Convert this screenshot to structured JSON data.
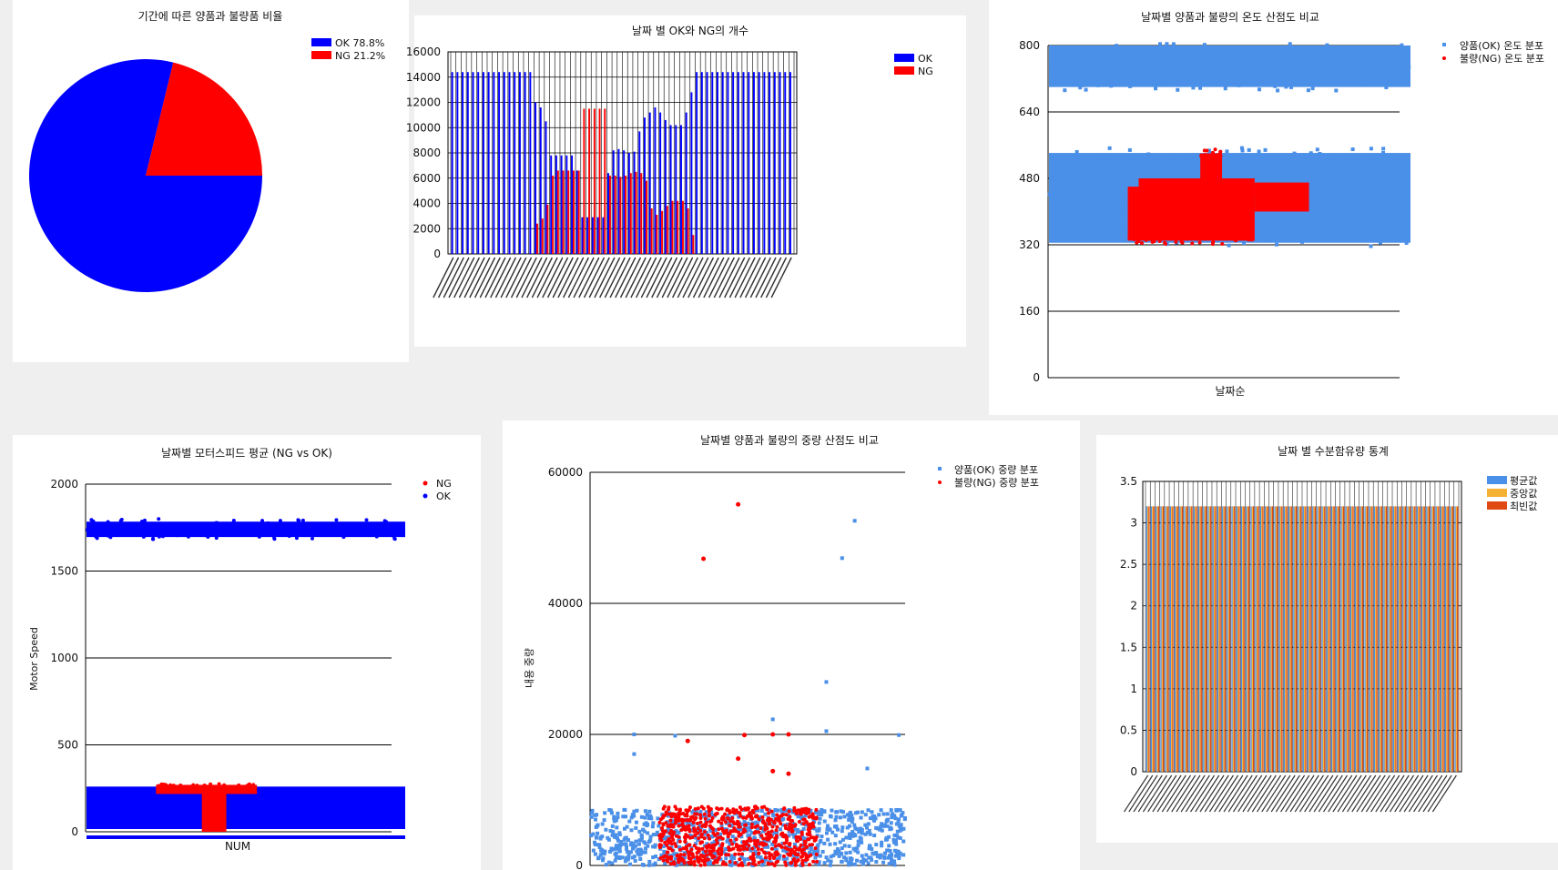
{
  "pie_chart": {
    "title": "기간에 따른 양품과 불량품 비율",
    "legend": [
      {
        "label": "OK 78.8%",
        "color": "#0000ff"
      },
      {
        "label": "NG 21.2%",
        "color": "#ff0000"
      }
    ]
  },
  "count_chart": {
    "title": "날짜 별 OK와 NG의 개수",
    "legend": [
      {
        "label": "OK",
        "color": "#0000ff"
      },
      {
        "label": "NG",
        "color": "#ff0000"
      }
    ]
  },
  "temp_chart": {
    "title": "날짜별 양품과 불량의 온도 산점도 비교",
    "xlabel": "날짜순",
    "legend": [
      {
        "label": "양품(OK) 온도 분포",
        "color": "#4a8fe8"
      },
      {
        "label": "불량(NG) 온도 분포",
        "color": "#ff0000"
      }
    ]
  },
  "motor_chart": {
    "title": "날짜별 모터스피드 평균 (NG vs OK)",
    "xlabel": "NUM",
    "ylabel": "Motor Speed",
    "legend": [
      {
        "label": "NG",
        "color": "#ff0000"
      },
      {
        "label": "OK",
        "color": "#0000ff"
      }
    ]
  },
  "weight_chart": {
    "title": "날짜별 양품과 불량의 중량 산점도 비교",
    "ylabel": "내용 중량",
    "legend": [
      {
        "label": "양품(OK) 중량 분포",
        "color": "#4a8fe8"
      },
      {
        "label": "불량(NG) 중량 분포",
        "color": "#ff0000"
      }
    ]
  },
  "moisture_chart": {
    "title": "날짜 별 수분함유량 통계",
    "legend": [
      {
        "label": "평균값",
        "color": "#4a8fe8"
      },
      {
        "label": "중앙값",
        "color": "#f5b133"
      },
      {
        "label": "최빈값",
        "color": "#e04a12"
      }
    ]
  },
  "chart_data": [
    {
      "type": "pie",
      "title": "기간에 따른 양품과 불량품 비율",
      "slices": [
        {
          "label": "OK",
          "value": 78.8,
          "color": "#0000ff"
        },
        {
          "label": "NG",
          "value": 21.2,
          "color": "#ff0000"
        }
      ],
      "legend": "top-right"
    },
    {
      "type": "bar",
      "title": "날짜 별 OK와 NG의 개수",
      "ylim": [
        0,
        16000
      ],
      "yticks": [
        0,
        2000,
        4000,
        6000,
        8000,
        10000,
        12000,
        14000,
        16000
      ],
      "grid": true,
      "legend": "top-right",
      "series": [
        {
          "name": "OK",
          "color": "#0000ff",
          "values": [
            14400,
            14400,
            14400,
            14400,
            14400,
            14400,
            14400,
            14400,
            14400,
            14400,
            14400,
            14400,
            14400,
            14400,
            14400,
            14400,
            12000,
            11600,
            10500,
            7800,
            7800,
            7800,
            7800,
            7800,
            6600,
            2900,
            2900,
            2900,
            2900,
            2900,
            6400,
            8200,
            8300,
            8200,
            8000,
            8100,
            9700,
            10800,
            11200,
            11600,
            11200,
            10600,
            10200,
            10200,
            10200,
            11200,
            12800,
            14400,
            14400,
            14400,
            14400,
            14400,
            14400,
            14400,
            14400,
            14400,
            14400,
            14400,
            14400,
            14400,
            14400,
            14400,
            14400,
            14400,
            14400,
            14400
          ]
        },
        {
          "name": "NG",
          "color": "#ff0000",
          "values": [
            0,
            0,
            0,
            0,
            0,
            0,
            0,
            0,
            0,
            0,
            0,
            0,
            0,
            0,
            0,
            0,
            2400,
            2800,
            3900,
            6200,
            6600,
            6600,
            6600,
            6600,
            6600,
            11500,
            11500,
            11500,
            11500,
            11500,
            6200,
            6200,
            6100,
            6200,
            6400,
            6500,
            6400,
            5800,
            3600,
            3100,
            3400,
            3800,
            4200,
            4200,
            4200,
            3600,
            1500,
            0,
            0,
            0,
            0,
            0,
            0,
            0,
            0,
            0,
            0,
            0,
            0,
            0,
            0,
            0,
            0,
            0,
            0,
            0
          ]
        }
      ]
    },
    {
      "type": "scatter",
      "title": "날짜별 양품과 불량의 온도 산점도 비교",
      "xlabel": "날짜순",
      "ylim": [
        0,
        800
      ],
      "yticks": [
        0,
        160,
        320,
        480,
        640,
        800
      ],
      "grid": true,
      "legend": "top-right",
      "series": [
        {
          "name": "양품(OK) 온도 분포",
          "color": "#4a8fe8",
          "bands": [
            [
              700,
              800
            ],
            [
              325,
              550
            ]
          ]
        },
        {
          "name": "불량(NG) 온도 분포",
          "color": "#ff0000",
          "bands": [
            [
              330,
              460
            ],
            [
              380,
              540
            ],
            [
              400,
              470
            ]
          ]
        }
      ]
    },
    {
      "type": "scatter",
      "title": "날짜별 모터스피드 평균 (NG vs OK)",
      "xlabel": "NUM",
      "ylabel": "Motor Speed",
      "ylim": [
        0,
        2000
      ],
      "yticks": [
        0,
        500,
        1000,
        1500,
        2000
      ],
      "grid": true,
      "legend": "top-right",
      "series": [
        {
          "name": "NG",
          "color": "#ff0000",
          "bands": [
            [
              0,
              270
            ]
          ]
        },
        {
          "name": "OK",
          "color": "#0000ff",
          "bands": [
            [
              1680,
              1800
            ],
            [
              0,
              260
            ]
          ]
        }
      ]
    },
    {
      "type": "scatter",
      "title": "날짜별 양품과 불량의 중량 산점도 비교",
      "ylabel": "내용 중량",
      "ylim": [
        0,
        60000
      ],
      "yticks": [
        0,
        20000,
        40000,
        60000
      ],
      "grid": true,
      "legend": "top-right",
      "series": [
        {
          "name": "양품(OK) 중량 분포",
          "color": "#4a8fe8",
          "bands": [
            [
              0,
              8500
            ]
          ],
          "outliers": [
            52600,
            46900,
            28000,
            22300,
            20000,
            19800
          ]
        },
        {
          "name": "불량(NG) 중량 분포",
          "color": "#ff0000",
          "bands": [
            [
              0,
              9000
            ]
          ],
          "outliers": [
            55100,
            46800,
            20000,
            19000,
            16300,
            14400
          ]
        }
      ]
    },
    {
      "type": "bar",
      "title": "날짜 별 수분함유량 통계",
      "ylim": [
        0,
        3.5
      ],
      "yticks": [
        0,
        0.5,
        1,
        1.5,
        2,
        2.5,
        3,
        3.5
      ],
      "grid": true,
      "legend": "top-right",
      "series": [
        {
          "name": "평균값",
          "color": "#4a8fe8",
          "value": 3.2
        },
        {
          "name": "중앙값",
          "color": "#f5b133",
          "value": 3.2
        },
        {
          "name": "최빈값",
          "color": "#e04a12",
          "value": 3.2
        }
      ],
      "category_count": 66
    }
  ]
}
